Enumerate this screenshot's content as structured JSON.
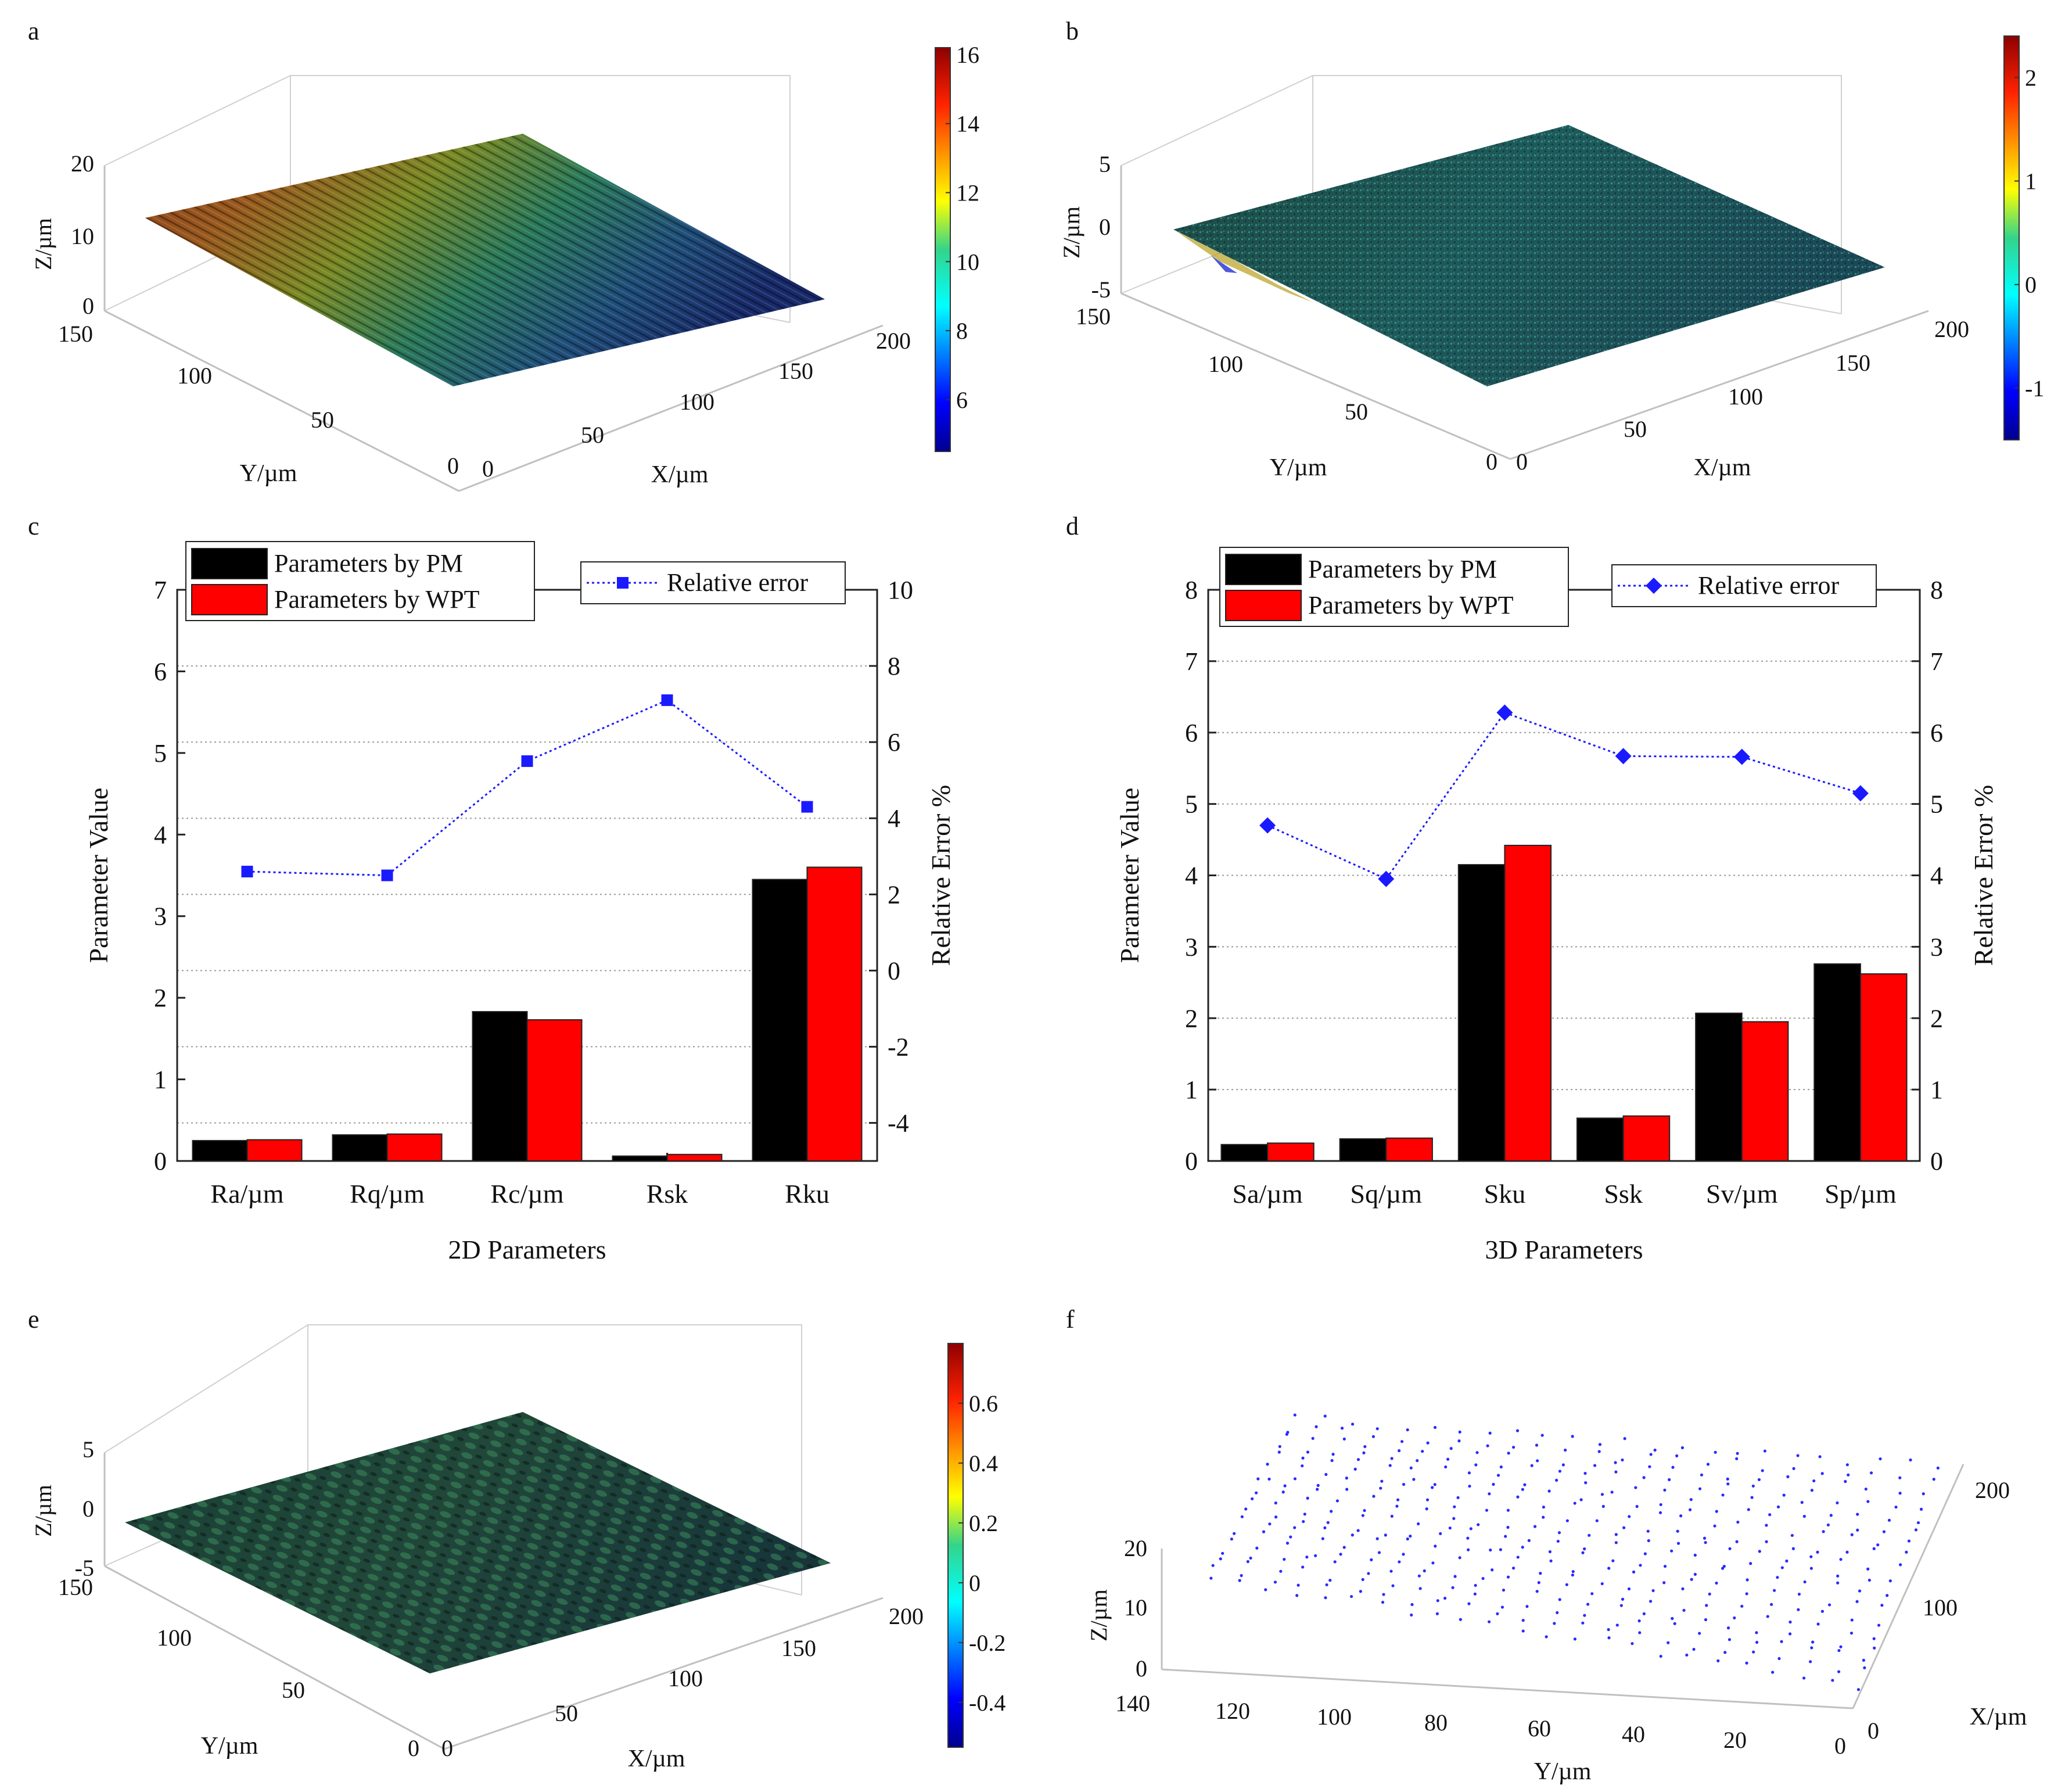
{
  "panels": {
    "a": {
      "letter": "a",
      "xlabel": "X/µm",
      "ylabel": "Y/µm",
      "zlabel": "Z/µm",
      "x_ticks": [
        "0",
        "50",
        "100",
        "150",
        "200"
      ],
      "y_ticks": [
        "0",
        "50",
        "100",
        "150"
      ],
      "z_ticks": [
        "0",
        "10",
        "20"
      ],
      "colorbar_ticks": [
        "16",
        "14",
        "12",
        "10",
        "8",
        "6"
      ],
      "colorbar_range": [
        4.5,
        16.2
      ]
    },
    "b": {
      "letter": "b",
      "xlabel": "X/µm",
      "ylabel": "Y/µm",
      "zlabel": "Z/µm",
      "x_ticks": [
        "0",
        "50",
        "100",
        "150",
        "200"
      ],
      "y_ticks": [
        "0",
        "50",
        "100",
        "150"
      ],
      "z_ticks": [
        "-5",
        "0",
        "5"
      ],
      "colorbar_ticks": [
        "2",
        "1",
        "0",
        "-1"
      ],
      "colorbar_range": [
        -1.5,
        2.4
      ]
    },
    "e": {
      "letter": "e",
      "xlabel": "X/µm",
      "ylabel": "Y/µm",
      "zlabel": "Z/µm",
      "x_ticks": [
        "0",
        "50",
        "100",
        "150",
        "200"
      ],
      "y_ticks": [
        "0",
        "50",
        "100",
        "150"
      ],
      "z_ticks": [
        "-5",
        "0",
        "5"
      ],
      "colorbar_ticks": [
        "0.6",
        "0.4",
        "0.2",
        "0",
        "-0.2",
        "-0.4"
      ],
      "colorbar_range": [
        -0.55,
        0.8
      ]
    },
    "f": {
      "letter": "f",
      "xlabel": "X/µm",
      "ylabel": "Y/µm",
      "zlabel": "Z/µm",
      "x_ticks": [
        "0",
        "100",
        "200"
      ],
      "y_ticks": [
        "140",
        "120",
        "100",
        "80",
        "60",
        "40",
        "20",
        "0"
      ],
      "z_ticks": [
        "0",
        "10",
        "20"
      ]
    }
  },
  "chart_data": [
    {
      "panel": "c",
      "type": "bar",
      "xlabel": "2D Parameters",
      "ylabel": "Parameter Value",
      "y2label": "Relative Error %",
      "categories": [
        "Ra/µm",
        "Rq/µm",
        "Rc/µm",
        "Rsk",
        "Rku"
      ],
      "series": [
        {
          "name": "Parameters by PM",
          "values": [
            0.25,
            0.32,
            1.83,
            0.06,
            3.45
          ],
          "color": "#000000"
        },
        {
          "name": "Parameters by WPT",
          "values": [
            0.26,
            0.33,
            1.73,
            0.08,
            3.6
          ],
          "color": "#ff0000"
        }
      ],
      "line_series": {
        "name": "Relative error",
        "values": [
          2.6,
          2.5,
          5.5,
          7.1,
          4.3
        ],
        "axis": "right",
        "color": "#1a1aff",
        "marker": "square"
      },
      "ylim": [
        0,
        7
      ],
      "y2lim": [
        -5,
        10
      ],
      "yticks": [
        "0",
        "1",
        "2",
        "3",
        "4",
        "5",
        "6",
        "7"
      ],
      "y2ticks": [
        "-4",
        "-2",
        "0",
        "2",
        "4",
        "6",
        "8",
        "10"
      ]
    },
    {
      "panel": "d",
      "type": "bar",
      "xlabel": "3D Parameters",
      "ylabel": "Parameter Value",
      "y2label": "Relative Error %",
      "categories": [
        "Sa/µm",
        "Sq/µm",
        "Sku",
        "Ssk",
        "Sv/µm",
        "Sp/µm"
      ],
      "series": [
        {
          "name": "Parameters by PM",
          "values": [
            0.23,
            0.31,
            4.15,
            0.6,
            2.07,
            2.76
          ],
          "color": "#000000"
        },
        {
          "name": "Parameters by WPT",
          "values": [
            0.25,
            0.32,
            4.42,
            0.63,
            1.95,
            2.62
          ],
          "color": "#ff0000"
        }
      ],
      "line_series": {
        "name": "Relative error",
        "values": [
          4.7,
          3.95,
          6.28,
          5.67,
          5.66,
          5.15
        ],
        "axis": "right",
        "color": "#1a1aff",
        "marker": "diamond"
      },
      "ylim": [
        0,
        8
      ],
      "y2lim": [
        0,
        8
      ],
      "yticks": [
        "0",
        "1",
        "2",
        "3",
        "4",
        "5",
        "6",
        "7",
        "8"
      ],
      "y2ticks": [
        "0",
        "1",
        "2",
        "3",
        "4",
        "5",
        "6",
        "7",
        "8"
      ]
    }
  ]
}
